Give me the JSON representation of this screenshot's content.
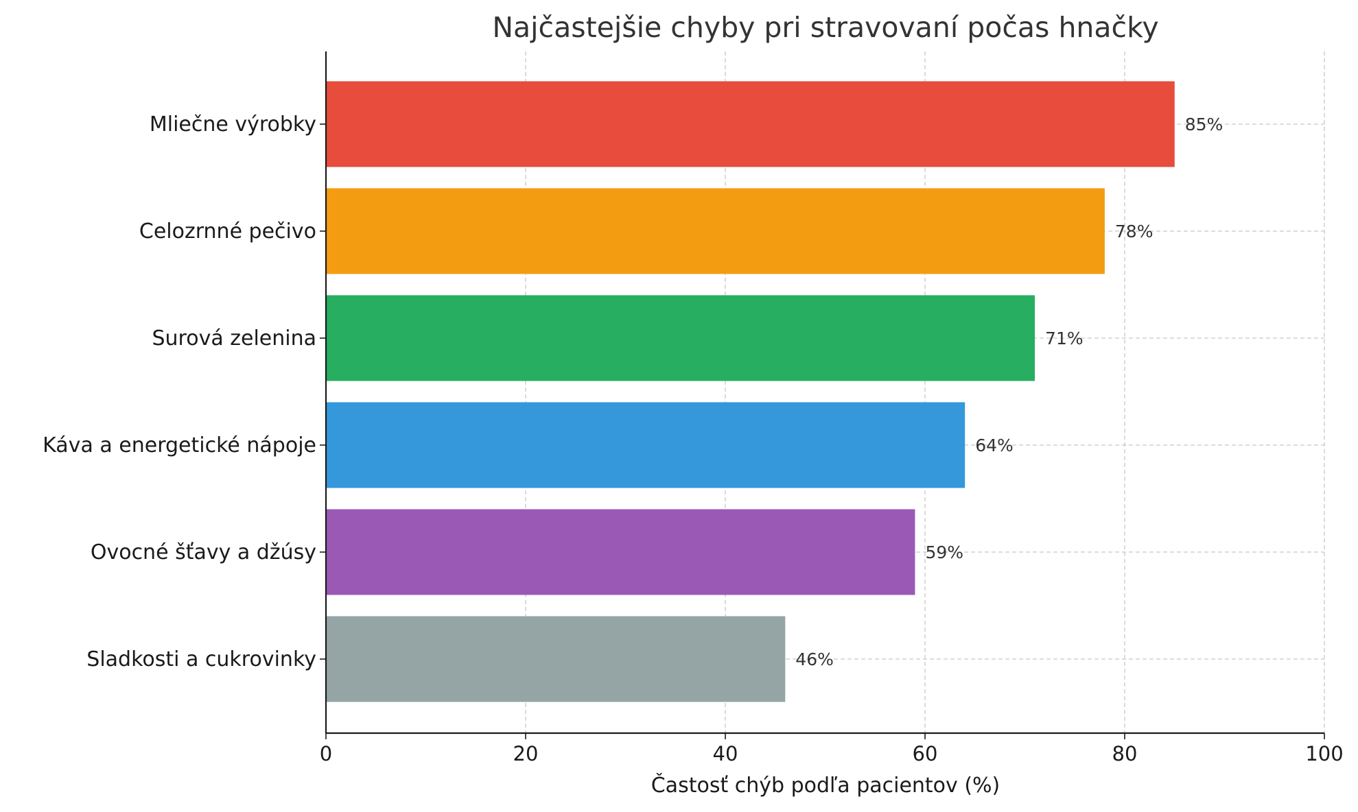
{
  "chart_data": {
    "type": "bar",
    "orientation": "horizontal",
    "title": "Najčastejšie chyby pri stravovaní počas hnačky",
    "xlabel": "Častosť chýb podľa pacientov (%)",
    "ylabel": "",
    "xlim": [
      0,
      100
    ],
    "xticks": [
      0,
      20,
      40,
      60,
      80,
      100
    ],
    "grid": true,
    "categories": [
      "Mliečne výrobky",
      "Celozrnné pečivo",
      "Surová zelenina",
      "Káva a energetické nápoje",
      "Ovocné šťavy a džúsy",
      "Sladkosti a cukrovinky"
    ],
    "values": [
      85,
      78,
      71,
      64,
      59,
      46
    ],
    "value_labels": [
      "85%",
      "78%",
      "71%",
      "64%",
      "59%",
      "46%"
    ],
    "colors": [
      "#e74c3c",
      "#f39c12",
      "#27ae60",
      "#3498db",
      "#9b59b6",
      "#95a5a6"
    ]
  }
}
